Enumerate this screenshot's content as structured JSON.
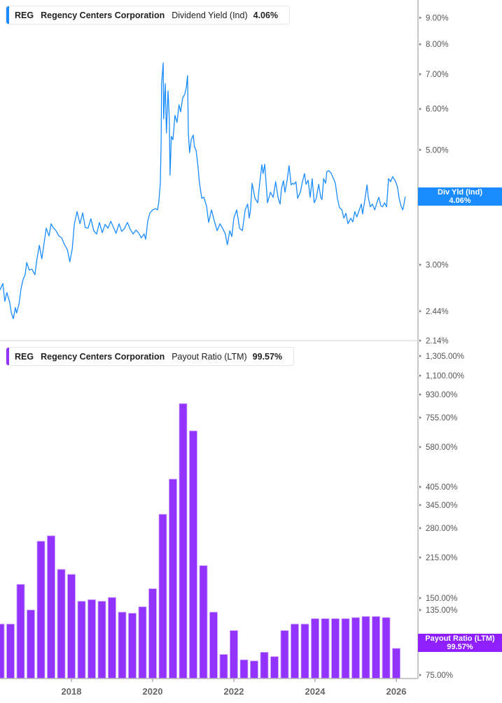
{
  "colors": {
    "yield": "#1a8cff",
    "payout": "#9333ff",
    "payout_border": "#cda6ff",
    "axis": "#b5b5b5",
    "tick_text": "#555555"
  },
  "legend_top": {
    "ticker": "REG",
    "company": "Regency Centers Corporation",
    "metric": "Dividend Yield (Ind)",
    "value": "4.06%"
  },
  "legend_bottom": {
    "ticker": "REG",
    "company": "Regency Centers Corporation",
    "metric": "Payout Ratio (LTM)",
    "value": "99.57%"
  },
  "tag_top": {
    "label": "Div Yld (Ind)",
    "value": "4.06%"
  },
  "tag_bottom": {
    "label": "Payout Ratio (LTM)",
    "value": "99.57%"
  },
  "chart_data": [
    {
      "type": "line",
      "series": [
        {
          "name": "Dividend Yield (Ind)",
          "color": "#1a8cff"
        }
      ],
      "yscale": "log",
      "ylim": [
        2.14,
        9.74
      ],
      "xlim": [
        2016.24,
        2026.53
      ],
      "yticks": [
        "9.00%",
        "8.00%",
        "7.00%",
        "6.00%",
        "5.00%",
        "4.00%",
        "3.00%",
        "2.44%",
        "2.14%"
      ],
      "ytick_values": [
        9,
        8,
        7,
        6,
        5,
        4,
        3,
        2.44,
        2.14
      ],
      "points": [
        [
          2016.24,
          2.68
        ],
        [
          2016.31,
          2.76
        ],
        [
          2016.36,
          2.55
        ],
        [
          2016.41,
          2.65
        ],
        [
          2016.48,
          2.54
        ],
        [
          2016.52,
          2.42
        ],
        [
          2016.57,
          2.36
        ],
        [
          2016.62,
          2.48
        ],
        [
          2016.65,
          2.42
        ],
        [
          2016.71,
          2.52
        ],
        [
          2016.76,
          2.7
        ],
        [
          2016.81,
          2.81
        ],
        [
          2016.86,
          2.87
        ],
        [
          2016.9,
          3.03
        ],
        [
          2016.96,
          2.93
        ],
        [
          2017.03,
          2.94
        ],
        [
          2017.1,
          2.87
        ],
        [
          2017.15,
          3.07
        ],
        [
          2017.21,
          3.27
        ],
        [
          2017.27,
          3.08
        ],
        [
          2017.31,
          3.23
        ],
        [
          2017.38,
          3.53
        ],
        [
          2017.45,
          3.41
        ],
        [
          2017.5,
          3.6
        ],
        [
          2017.55,
          3.54
        ],
        [
          2017.62,
          3.49
        ],
        [
          2017.69,
          3.41
        ],
        [
          2017.76,
          3.38
        ],
        [
          2017.83,
          3.28
        ],
        [
          2017.9,
          3.21
        ],
        [
          2017.96,
          3.04
        ],
        [
          2018.02,
          3.22
        ],
        [
          2018.07,
          3.59
        ],
        [
          2018.14,
          3.8
        ],
        [
          2018.21,
          3.6
        ],
        [
          2018.28,
          3.78
        ],
        [
          2018.34,
          3.54
        ],
        [
          2018.41,
          3.53
        ],
        [
          2018.48,
          3.68
        ],
        [
          2018.55,
          3.49
        ],
        [
          2018.62,
          3.44
        ],
        [
          2018.69,
          3.62
        ],
        [
          2018.76,
          3.46
        ],
        [
          2018.83,
          3.59
        ],
        [
          2018.9,
          3.53
        ],
        [
          2018.97,
          3.64
        ],
        [
          2019.03,
          3.55
        ],
        [
          2019.1,
          3.45
        ],
        [
          2019.17,
          3.6
        ],
        [
          2019.24,
          3.48
        ],
        [
          2019.31,
          3.53
        ],
        [
          2019.38,
          3.62
        ],
        [
          2019.45,
          3.51
        ],
        [
          2019.52,
          3.44
        ],
        [
          2019.59,
          3.5
        ],
        [
          2019.66,
          3.45
        ],
        [
          2019.72,
          3.38
        ],
        [
          2019.79,
          3.44
        ],
        [
          2019.83,
          3.36
        ],
        [
          2019.88,
          3.64
        ],
        [
          2019.93,
          3.77
        ],
        [
          2020.0,
          3.83
        ],
        [
          2020.07,
          3.85
        ],
        [
          2020.12,
          3.83
        ],
        [
          2020.15,
          3.95
        ],
        [
          2020.19,
          4.31
        ],
        [
          2020.21,
          5.23
        ],
        [
          2020.22,
          6.71
        ],
        [
          2020.26,
          7.36
        ],
        [
          2020.27,
          5.74
        ],
        [
          2020.31,
          6.71
        ],
        [
          2020.34,
          5.39
        ],
        [
          2020.38,
          6.5
        ],
        [
          2020.41,
          5.74
        ],
        [
          2020.43,
          4.47
        ],
        [
          2020.46,
          5.31
        ],
        [
          2020.5,
          5.23
        ],
        [
          2020.55,
          5.83
        ],
        [
          2020.6,
          5.65
        ],
        [
          2020.65,
          6.11
        ],
        [
          2020.69,
          5.92
        ],
        [
          2020.74,
          6.3
        ],
        [
          2020.79,
          6.4
        ],
        [
          2020.83,
          6.6
        ],
        [
          2020.86,
          6.96
        ],
        [
          2020.88,
          5.39
        ],
        [
          2020.91,
          4.94
        ],
        [
          2020.95,
          5.23
        ],
        [
          2021.0,
          5.34
        ],
        [
          2021.03,
          5.07
        ],
        [
          2021.07,
          4.99
        ],
        [
          2021.12,
          4.62
        ],
        [
          2021.15,
          4.34
        ],
        [
          2021.21,
          4.03
        ],
        [
          2021.26,
          4.05
        ],
        [
          2021.33,
          3.89
        ],
        [
          2021.38,
          3.62
        ],
        [
          2021.45,
          3.83
        ],
        [
          2021.52,
          3.64
        ],
        [
          2021.59,
          3.49
        ],
        [
          2021.66,
          3.6
        ],
        [
          2021.72,
          3.53
        ],
        [
          2021.79,
          3.44
        ],
        [
          2021.84,
          3.28
        ],
        [
          2021.9,
          3.49
        ],
        [
          2021.95,
          3.4
        ],
        [
          2022.0,
          3.69
        ],
        [
          2022.07,
          3.83
        ],
        [
          2022.14,
          3.53
        ],
        [
          2022.21,
          3.49
        ],
        [
          2022.28,
          3.83
        ],
        [
          2022.34,
          3.93
        ],
        [
          2022.38,
          3.69
        ],
        [
          2022.41,
          3.83
        ],
        [
          2022.45,
          4.31
        ],
        [
          2022.52,
          4.03
        ],
        [
          2022.59,
          3.95
        ],
        [
          2022.62,
          4.2
        ],
        [
          2022.69,
          4.68
        ],
        [
          2022.72,
          4.5
        ],
        [
          2022.76,
          4.69
        ],
        [
          2022.83,
          3.95
        ],
        [
          2022.9,
          4.14
        ],
        [
          2022.97,
          4.05
        ],
        [
          2023.03,
          4.34
        ],
        [
          2023.09,
          4.04
        ],
        [
          2023.14,
          3.93
        ],
        [
          2023.17,
          4.2
        ],
        [
          2023.22,
          4.36
        ],
        [
          2023.26,
          4.14
        ],
        [
          2023.31,
          4.36
        ],
        [
          2023.36,
          4.66
        ],
        [
          2023.41,
          4.28
        ],
        [
          2023.45,
          4.31
        ],
        [
          2023.48,
          4.29
        ],
        [
          2023.53,
          4.34
        ],
        [
          2023.57,
          4.03
        ],
        [
          2023.64,
          4.15
        ],
        [
          2023.69,
          4.34
        ],
        [
          2023.74,
          4.5
        ],
        [
          2023.78,
          4.29
        ],
        [
          2023.83,
          4.37
        ],
        [
          2023.88,
          4.05
        ],
        [
          2023.93,
          4.4
        ],
        [
          2023.98,
          3.95
        ],
        [
          2024.03,
          4.03
        ],
        [
          2024.09,
          4.29
        ],
        [
          2024.14,
          4.05
        ],
        [
          2024.17,
          4.01
        ],
        [
          2024.21,
          4.4
        ],
        [
          2024.26,
          4.31
        ],
        [
          2024.29,
          4.54
        ],
        [
          2024.34,
          4.56
        ],
        [
          2024.4,
          4.5
        ],
        [
          2024.45,
          4.41
        ],
        [
          2024.5,
          4.31
        ],
        [
          2024.55,
          4.03
        ],
        [
          2024.6,
          3.87
        ],
        [
          2024.66,
          3.83
        ],
        [
          2024.71,
          3.69
        ],
        [
          2024.76,
          3.77
        ],
        [
          2024.81,
          3.6
        ],
        [
          2024.88,
          3.69
        ],
        [
          2024.93,
          3.63
        ],
        [
          2024.98,
          3.8
        ],
        [
          2025.03,
          3.71
        ],
        [
          2025.09,
          3.83
        ],
        [
          2025.14,
          3.93
        ],
        [
          2025.17,
          3.76
        ],
        [
          2025.22,
          3.98
        ],
        [
          2025.28,
          4.28
        ],
        [
          2025.31,
          4.05
        ],
        [
          2025.36,
          3.88
        ],
        [
          2025.41,
          3.93
        ],
        [
          2025.47,
          3.83
        ],
        [
          2025.52,
          3.95
        ],
        [
          2025.57,
          4.05
        ],
        [
          2025.62,
          3.9
        ],
        [
          2025.66,
          3.88
        ],
        [
          2025.71,
          3.95
        ],
        [
          2025.76,
          3.88
        ],
        [
          2025.81,
          4.4
        ],
        [
          2025.86,
          4.34
        ],
        [
          2025.91,
          4.44
        ],
        [
          2025.97,
          4.36
        ],
        [
          2026.0,
          4.31
        ],
        [
          2026.03,
          4.24
        ],
        [
          2026.07,
          4.03
        ],
        [
          2026.12,
          3.89
        ],
        [
          2026.16,
          3.83
        ],
        [
          2026.19,
          3.93
        ],
        [
          2026.22,
          4.06
        ]
      ]
    },
    {
      "type": "bar",
      "series": [
        {
          "name": "Payout Ratio (LTM)",
          "color": "#9333ff"
        }
      ],
      "yticks": [
        "1,305.00%",
        "1,100.00%",
        "930.00%",
        "755.00%",
        "580.00%",
        "405.00%",
        "345.00%",
        "280.00%",
        "215.00%",
        "150.00%",
        "135.00%",
        "75.00%"
      ],
      "ytick_values": [
        1305,
        1100,
        930,
        755,
        580,
        405,
        345,
        280,
        215,
        150,
        135,
        75
      ],
      "xticks": [
        "2018",
        "2020",
        "2022",
        "2024",
        "2026"
      ],
      "xtick_values": [
        2018,
        2020,
        2022,
        2024,
        2026
      ],
      "x": [
        2016.25,
        2016.5,
        2016.75,
        2017.0,
        2017.25,
        2017.5,
        2017.75,
        2018.0,
        2018.25,
        2018.5,
        2018.75,
        2019.0,
        2019.25,
        2019.5,
        2019.75,
        2020.0,
        2020.25,
        2020.5,
        2020.75,
        2021.0,
        2021.25,
        2021.5,
        2021.75,
        2022.0,
        2022.25,
        2022.5,
        2022.75,
        2023.0,
        2023.25,
        2023.5,
        2023.75,
        2024.0,
        2024.25,
        2024.5,
        2024.75,
        2025.0,
        2025.25,
        2025.5,
        2025.75,
        2026.0
      ],
      "values": [
        122,
        122,
        172,
        135,
        251,
        263,
        196,
        188,
        146,
        148,
        146,
        151,
        133,
        132,
        139,
        165,
        319,
        439,
        861,
        676,
        202,
        133,
        94,
        116,
        89,
        88,
        96,
        92,
        116,
        122,
        122,
        127,
        127,
        127,
        127,
        128,
        129,
        129,
        128,
        99.57
      ]
    }
  ]
}
